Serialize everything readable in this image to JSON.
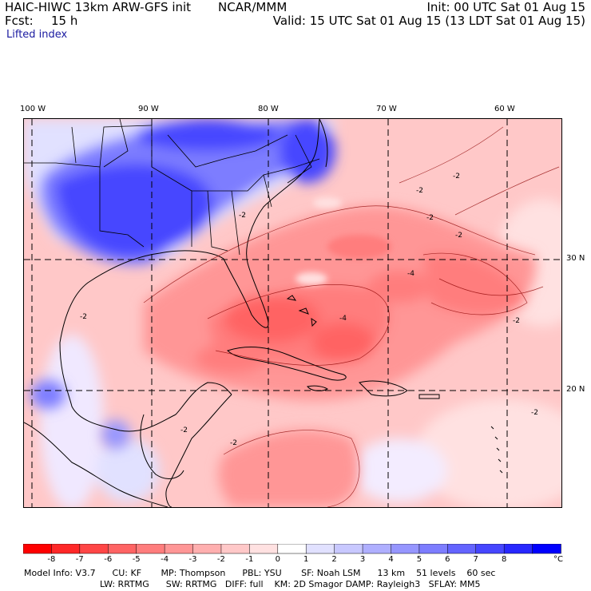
{
  "header": {
    "title_left": "HAIC-HIWC 13km ARW-GFS init",
    "title_mid": "NCAR/MMM",
    "init": "Init: 00 UTC Sat 01 Aug 15",
    "fcst_label": "Fcst:",
    "fcst_value": "15 h",
    "valid": "Valid: 15 UTC Sat 01 Aug 15 (13 LDT Sat 01 Aug 15)",
    "field": "Lifted index"
  },
  "map": {
    "lon_labels": [
      "100 W",
      "90 W",
      "80 W",
      "70 W",
      "60 W"
    ],
    "lat_labels": [
      "30 N",
      "20 N"
    ],
    "contour_labels": [
      "-2",
      "-2",
      "-2",
      "-2",
      "-2",
      "-2",
      "-2",
      "-4",
      "-4",
      "-2",
      "-2",
      "-2"
    ]
  },
  "colorbar": {
    "colors": [
      "#ff0000",
      "#ff2828",
      "#ff4646",
      "#ff6464",
      "#ff7d7d",
      "#ff9696",
      "#ffafaf",
      "#ffc8c8",
      "#ffe1e1",
      "#ffffff",
      "#e1e1ff",
      "#c8c8ff",
      "#afafff",
      "#9696ff",
      "#7d7dff",
      "#6464ff",
      "#4646ff",
      "#2828ff",
      "#0000ff"
    ],
    "labels": [
      "-8",
      "-7",
      "-6",
      "-5",
      "-4",
      "-3",
      "-2",
      "-1",
      "0",
      "1",
      "2",
      "3",
      "4",
      "5",
      "6",
      "7",
      "8"
    ],
    "unit": "°C"
  },
  "footer": {
    "line1": "Model Info: V3.7      CU: KF       MP: Thompson      PBL: YSU       SF: Noah LSM      13 km    51 levels    60 sec",
    "line2": "LW: RRTMG      SW: RRTMG   DIFF: full    KM: 2D Smagor DAMP: Rayleigh3   SFLAY: MM5"
  }
}
